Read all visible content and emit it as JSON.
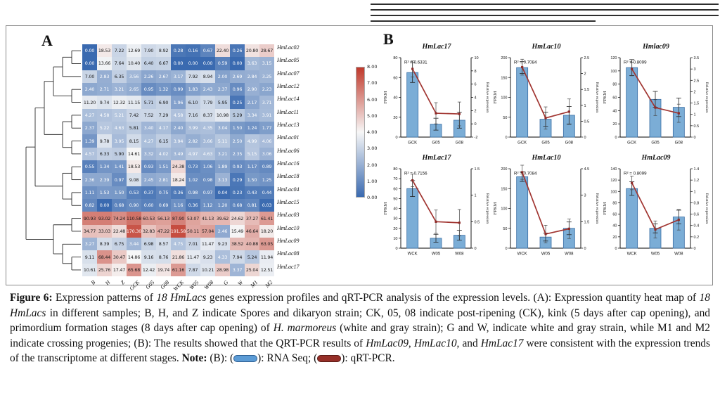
{
  "panels": {
    "a_label": "A",
    "b_label": "B"
  },
  "colors": {
    "heat_low": "#3a6ab0",
    "heat_mid": "#f7f7f7",
    "heat_high": "#c0392b",
    "bar_fill": "#7badd6",
    "bar_stroke": "#3a6ea5",
    "line": "#a13531",
    "marker": "#8e2a28"
  },
  "chart_data": [
    {
      "type": "heatmap",
      "columns": [
        "B",
        "H",
        "Z",
        "GCK",
        "G05",
        "G08",
        "WCK",
        "W05",
        "W08",
        "G",
        "W",
        "M1",
        "M2"
      ],
      "rows": [
        "HmLac02",
        "HmLac05",
        "HmLac07",
        "HmLac12",
        "HmLac14",
        "HmLac11",
        "HmLac13",
        "HmLac01",
        "HmLac06",
        "HmLac16",
        "HmLac18",
        "HmLac04",
        "HmLac15",
        "HmLac03",
        "HmLac10",
        "HmLac09",
        "HmLac08",
        "HmLac17"
      ],
      "values": [
        [
          0.0,
          18.53,
          7.22,
          12.69,
          7.9,
          8.92,
          0.28,
          0.16,
          0.67,
          22.4,
          0.26,
          20.8,
          28.67
        ],
        [
          0.0,
          13.66,
          7.64,
          10.4,
          6.4,
          6.67,
          0.0,
          0.0,
          0.0,
          0.59,
          0.0,
          3.63,
          3.15
        ],
        [
          7.0,
          2.83,
          6.35,
          3.56,
          2.26,
          2.67,
          3.17,
          7.92,
          8.94,
          2.0,
          2.69,
          2.84,
          3.25
        ],
        [
          2.4,
          2.71,
          3.21,
          2.65,
          0.95,
          1.32,
          0.99,
          1.83,
          2.43,
          2.37,
          0.96,
          2.9,
          2.23
        ],
        [
          11.2,
          9.74,
          12.32,
          11.15,
          5.71,
          6.9,
          1.96,
          6.1,
          7.79,
          5.95,
          0.25,
          2.17,
          3.71
        ],
        [
          4.27,
          4.58,
          5.21,
          7.42,
          7.52,
          7.29,
          4.58,
          7.16,
          8.37,
          10.98,
          5.29,
          3.34,
          3.91
        ],
        [
          2.37,
          5.22,
          4.63,
          5.81,
          3.4,
          4.17,
          2.4,
          3.99,
          4.35,
          3.04,
          1.5,
          1.24,
          1.77
        ],
        [
          1.39,
          9.78,
          3.95,
          8.15,
          4.27,
          6.15,
          3.94,
          2.82,
          3.66,
          5.11,
          2.5,
          4.99,
          4.06
        ],
        [
          4.57,
          6.33,
          5.9,
          14.61,
          3.32,
          4.02,
          3.49,
          4.97,
          4.63,
          3.21,
          2.35,
          5.15,
          3.06
        ],
        [
          0.55,
          1.34,
          1.41,
          18.53,
          0.93,
          1.51,
          24.38,
          0.73,
          1.06,
          1.89,
          0.93,
          1.17,
          0.89
        ],
        [
          2.36,
          2.39,
          0.97,
          9.08,
          2.45,
          2.81,
          18.24,
          1.02,
          0.98,
          3.13,
          0.29,
          1.5,
          1.25
        ],
        [
          1.11,
          1.53,
          1.5,
          0.53,
          0.37,
          0.75,
          0.36,
          0.98,
          0.97,
          0.04,
          0.23,
          0.43,
          0.44
        ],
        [
          0.82,
          0.0,
          0.68,
          0.9,
          0.6,
          0.69,
          1.16,
          0.36,
          1.12,
          1.2,
          0.68,
          0.81,
          0.03
        ],
        [
          90.93,
          93.02,
          74.24,
          110.58,
          60.53,
          56.13,
          87.9,
          53.07,
          41.13,
          39.62,
          24.62,
          37.27,
          61.41
        ],
        [
          34.77,
          33.03,
          22.48,
          170.3,
          32.83,
          47.22,
          191.58,
          50.11,
          57.04,
          2.46,
          15.49,
          46.64,
          18.2
        ],
        [
          3.27,
          8.39,
          6.75,
          3.44,
          6.98,
          8.57,
          4.75,
          7.01,
          11.47,
          9.23,
          38.52,
          40.88,
          63.05
        ],
        [
          9.11,
          68.44,
          30.47,
          14.86,
          9.16,
          8.76,
          21.86,
          11.47,
          9.23,
          4.33,
          7.94,
          5.24,
          11.94
        ],
        [
          10.61,
          25.76,
          17.47,
          65.68,
          12.42,
          19.74,
          61.16,
          7.87,
          10.21,
          28.98,
          3.37,
          25.04,
          12.51
        ]
      ],
      "colorbar_ticks": [
        "8.00",
        "7.00",
        "6.00",
        "5.00",
        "4.00",
        "3.00",
        "2.00",
        "1.00",
        "0.00"
      ],
      "scale_domain": [
        0,
        8
      ]
    },
    {
      "type": "bar",
      "title": "HmLac17",
      "r2": "R² = 0.6331",
      "categories": [
        "GCK",
        "G05",
        "G08"
      ],
      "ylabel_left": "FPKM",
      "ylabel_right": "Relative expression",
      "left_ticks": [
        0,
        20,
        40,
        60,
        80
      ],
      "right_ticks": [
        -2,
        0,
        2,
        4,
        6,
        8,
        10
      ],
      "bars": [
        65,
        13,
        17
      ],
      "bar_err": [
        10,
        6,
        8
      ],
      "line": [
        8.3,
        1.6,
        1.5
      ],
      "line_err": [
        1.2,
        1.6,
        1.8
      ]
    },
    {
      "type": "bar",
      "title": "HmLac10",
      "r2": "R² = 0.7084",
      "categories": [
        "GCK",
        "G05",
        "G08"
      ],
      "ylabel_left": "FPKM",
      "ylabel_right": "Relative expression",
      "left_ticks": [
        0,
        50,
        100,
        150,
        200
      ],
      "right_ticks": [
        0,
        0.5,
        1,
        1.5,
        2,
        2.5
      ],
      "bars": [
        175,
        45,
        55
      ],
      "bar_err": [
        15,
        18,
        22
      ],
      "line": [
        2.2,
        0.6,
        0.8
      ],
      "line_err": [
        0.25,
        0.35,
        0.4
      ]
    },
    {
      "type": "bar",
      "title": "Hmlac09",
      "r2": "R² = 0.8099",
      "categories": [
        "GCK",
        "G05",
        "G08"
      ],
      "ylabel_left": "FPKM",
      "ylabel_right": "Relative expression",
      "left_ticks": [
        0,
        20,
        40,
        60,
        80,
        100,
        120
      ],
      "right_ticks": [
        0,
        0.5,
        1,
        1.5,
        2,
        2.5,
        3,
        3.5
      ],
      "bars": [
        105,
        57,
        45
      ],
      "bar_err": [
        12,
        12,
        14
      ],
      "line": [
        3.0,
        1.3,
        1.05
      ],
      "line_err": [
        0.3,
        0.35,
        0.4
      ]
    },
    {
      "type": "bar",
      "title": "HmLac17",
      "r2": "R² = 0.7156",
      "categories": [
        "WCK",
        "W05",
        "W08"
      ],
      "ylabel_left": "FPKM",
      "ylabel_right": "Relative expression",
      "left_ticks": [
        0,
        10,
        20,
        30,
        40,
        50,
        60,
        70,
        80
      ],
      "right_ticks": [
        0,
        0.5,
        1,
        1.5
      ],
      "bars": [
        60,
        10,
        13
      ],
      "bar_err": [
        8,
        4,
        5
      ],
      "line": [
        1.28,
        0.5,
        0.48
      ],
      "line_err": [
        0.12,
        0.22,
        0.25
      ]
    },
    {
      "type": "bar",
      "title": "HmLac10",
      "r2": "R² = 0.7084",
      "categories": [
        "WCK",
        "W05",
        "W08"
      ],
      "ylabel_left": "FPKM",
      "ylabel_right": "Relative expression",
      "left_ticks": [
        0,
        50,
        100,
        150,
        200
      ],
      "right_ticks": [
        0,
        1.5,
        3,
        4.5
      ],
      "bars": [
        180,
        28,
        50
      ],
      "bar_err": [
        12,
        10,
        16
      ],
      "line": [
        4.3,
        0.8,
        1.1
      ],
      "line_err": [
        0.4,
        0.5,
        0.55
      ]
    },
    {
      "type": "bar",
      "title": "HmLac09",
      "r2": "R² = 0.8099",
      "categories": [
        "WCK",
        "W05",
        "W08"
      ],
      "ylabel_left": "FPKM",
      "ylabel_right": "Relative expression",
      "left_ticks": [
        0,
        20,
        40,
        60,
        80,
        100,
        120,
        140
      ],
      "right_ticks": [
        0,
        0.2,
        0.4,
        0.6,
        0.8,
        1,
        1.2,
        1.4
      ],
      "bars": [
        105,
        35,
        55
      ],
      "bar_err": [
        12,
        8,
        12
      ],
      "line": [
        1.15,
        0.33,
        0.5
      ],
      "line_err": [
        0.12,
        0.15,
        0.18
      ]
    }
  ],
  "caption": {
    "segments": [
      {
        "text": "Figure 6: ",
        "bold": true
      },
      {
        "text": "Expression patterns of "
      },
      {
        "text": "18 HmLacs",
        "italic": true
      },
      {
        "text": " genes expression profiles and qRT-PCR analysis of the expression levels. (A): Expression quantity heat map of "
      },
      {
        "text": "18 HmLacs",
        "italic": true
      },
      {
        "text": " in different samples; B, H, and Z indicate Spores and dikaryon strain; CK, 05, 08 indicate post-ripening (CK), kink (5 days after cap opening), and primordium formation stages (8 days after cap opening) of "
      },
      {
        "text": "H. marmoreus",
        "italic": true
      },
      {
        "text": " (white and gray strain); G and W, indicate white and gray strain, while M1 and M2 indicate crossing progenies; (B): The results showed that the QRT-PCR results of "
      },
      {
        "text": "HmLac09",
        "italic": true
      },
      {
        "text": ", "
      },
      {
        "text": "HmLac10",
        "italic": true
      },
      {
        "text": ", and "
      },
      {
        "text": "HmLac17",
        "italic": true
      },
      {
        "text": " were consistent with the expression trends of the transcriptome at different stages. "
      },
      {
        "text": "Note:",
        "bold": true
      },
      {
        "text": " (B): ("
      },
      {
        "swatch": "rna-seq",
        "color": "#5b9bd5",
        "border": "#2e5f92"
      },
      {
        "text": "): RNA Seq; ("
      },
      {
        "swatch": "qrt-pcr",
        "color": "#962f28",
        "border": "#5a1c17"
      },
      {
        "text": "): qRT-PCR."
      }
    ]
  }
}
